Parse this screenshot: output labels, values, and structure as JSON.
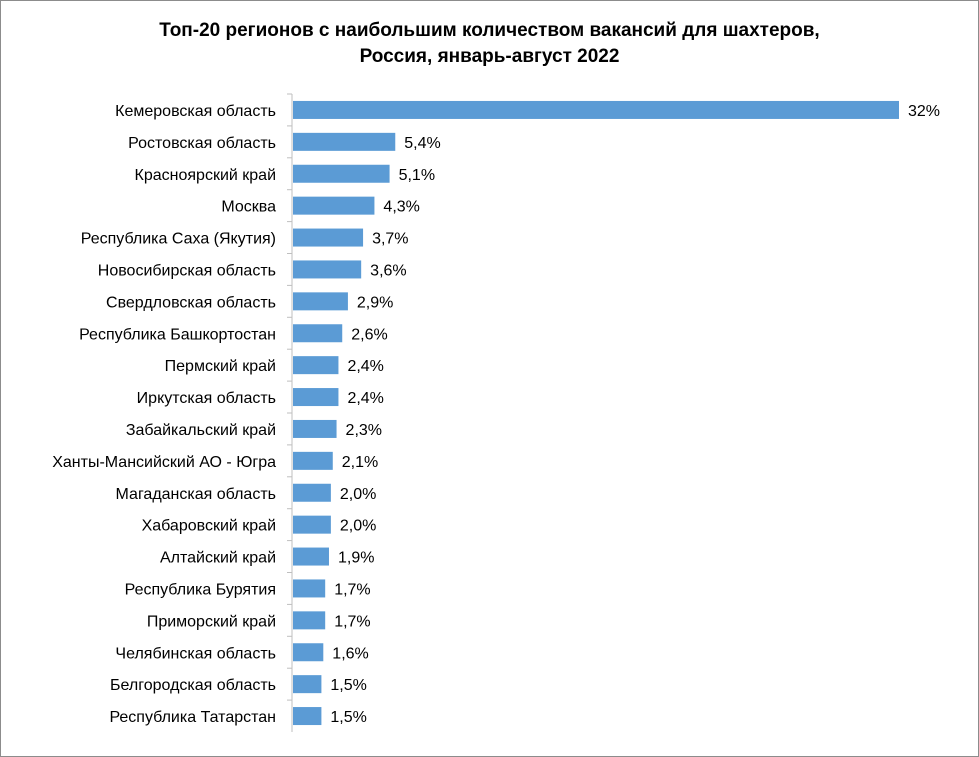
{
  "chart_data": {
    "type": "bar",
    "orientation": "horizontal",
    "title_line1": "Топ-20 регионов с наибольшим количеством вакансий для шахтеров,",
    "title_line2": "Россия, январь-август 2022",
    "bar_color": "#5b9bd5",
    "categories": [
      "Кемеровская область",
      "Ростовская область",
      "Красноярский край",
      "Москва",
      "Республика Саха (Якутия)",
      "Новосибирская область",
      "Свердловская область",
      "Республика Башкортостан",
      "Пермский край",
      "Иркутская область",
      "Забайкальский край",
      "Ханты-Мансийский АО - Югра",
      "Магаданская область",
      "Хабаровский край",
      "Алтайский край",
      "Республика Бурятия",
      "Приморский край",
      "Челябинская область",
      "Белгородская область",
      "Республика Татарстан"
    ],
    "values": [
      32,
      5.4,
      5.1,
      4.3,
      3.7,
      3.6,
      2.9,
      2.6,
      2.4,
      2.4,
      2.3,
      2.1,
      2.0,
      2.0,
      1.9,
      1.7,
      1.7,
      1.6,
      1.5,
      1.5
    ],
    "value_labels": [
      "32%",
      "5,4%",
      "5,1%",
      "4,3%",
      "3,7%",
      "3,6%",
      "2,9%",
      "2,6%",
      "2,4%",
      "2,4%",
      "2,3%",
      "2,1%",
      "2,0%",
      "2,0%",
      "1,9%",
      "1,7%",
      "1,7%",
      "1,6%",
      "1,5%",
      "1,5%"
    ],
    "xlim": [
      0,
      32
    ],
    "grid": false,
    "legend": "none"
  }
}
